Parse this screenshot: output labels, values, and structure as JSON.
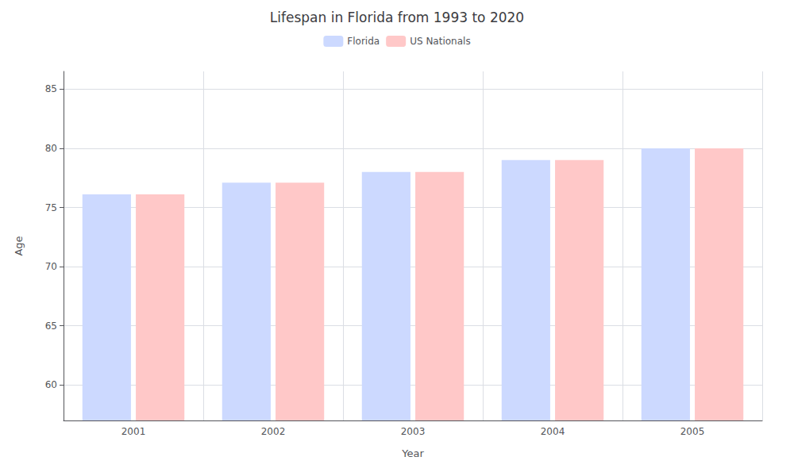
{
  "chart_data": {
    "type": "bar",
    "title": "Lifespan in Florida from 1993 to 2020",
    "xlabel": "Year",
    "ylabel": "Age",
    "categories": [
      "2001",
      "2002",
      "2003",
      "2004",
      "2005"
    ],
    "series": [
      {
        "name": "Florida",
        "color": "#ccd9ff",
        "values": [
          76.1,
          77.1,
          78.0,
          79.0,
          80.0
        ]
      },
      {
        "name": "US Nationals",
        "color": "#ffc8c8",
        "values": [
          76.1,
          77.1,
          78.0,
          79.0,
          80.0
        ]
      }
    ],
    "ylim": [
      57,
      86.5
    ],
    "yticks": [
      60,
      65,
      70,
      75,
      80,
      85
    ],
    "grid": true,
    "legend": "top"
  }
}
